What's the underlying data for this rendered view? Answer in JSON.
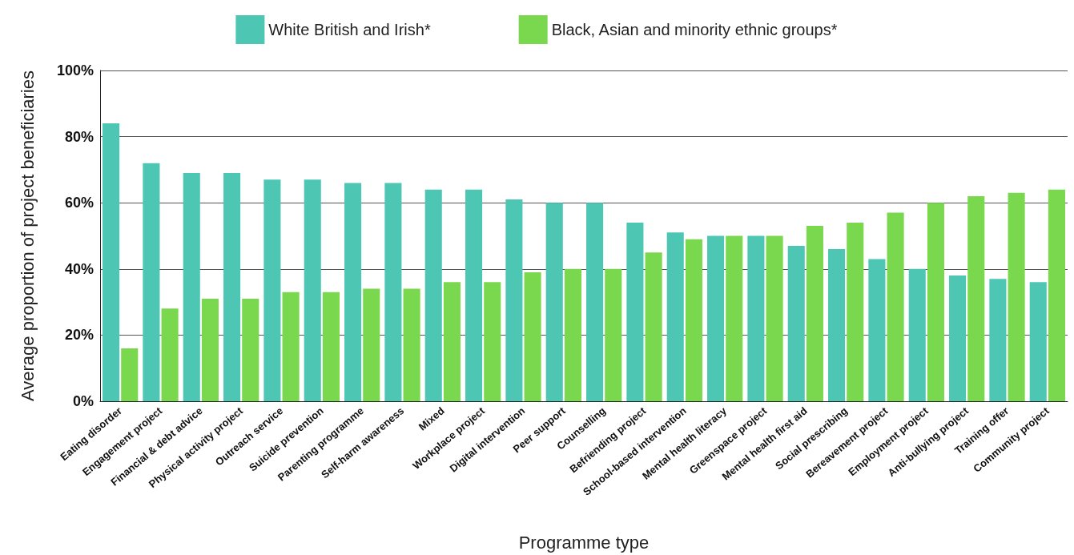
{
  "chart_data": {
    "type": "bar",
    "xlabel": "Programme type",
    "ylabel": "Average proportion of project beneficiaries",
    "categories": [
      "Eating disorder",
      "Engagement project",
      "Financial & debt advice",
      "Physical activity project",
      "Outreach service",
      "Suicide prevention",
      "Parenting programme",
      "Self-harm awareness",
      "Mixed",
      "Workplace project",
      "Digital intervention",
      "Peer support",
      "Counselling",
      "Befriending project",
      "School-based intervention",
      "Mental health literacy",
      "Greenspace project",
      "Mental health first aid",
      "Social prescribing",
      "Bereavement project",
      "Employment project",
      "Anti-bullying project",
      "Training offer",
      "Community project"
    ],
    "series": [
      {
        "name": "White British and Irish*",
        "color": "#4dc7b4",
        "values": [
          84,
          72,
          69,
          69,
          67,
          67,
          66,
          66,
          64,
          64,
          61,
          60,
          60,
          54,
          51,
          50,
          50,
          47,
          46,
          43,
          40,
          38,
          37,
          36
        ]
      },
      {
        "name": "Black, Asian and minority ethnic groups*",
        "color": "#7ad84e",
        "values": [
          16,
          28,
          31,
          31,
          33,
          33,
          34,
          34,
          36,
          36,
          39,
          40,
          40,
          45,
          49,
          50,
          50,
          53,
          54,
          57,
          60,
          62,
          63,
          64
        ]
      }
    ],
    "ylim": [
      0,
      100
    ],
    "yticks": [
      {
        "value": 0,
        "label": "0%"
      },
      {
        "value": 20,
        "label": "20%"
      },
      {
        "value": 40,
        "label": "40%"
      },
      {
        "value": 60,
        "label": "60%"
      },
      {
        "value": 80,
        "label": "80%"
      },
      {
        "value": 100,
        "label": "100%"
      }
    ],
    "grid": "y",
    "legend": "top"
  }
}
